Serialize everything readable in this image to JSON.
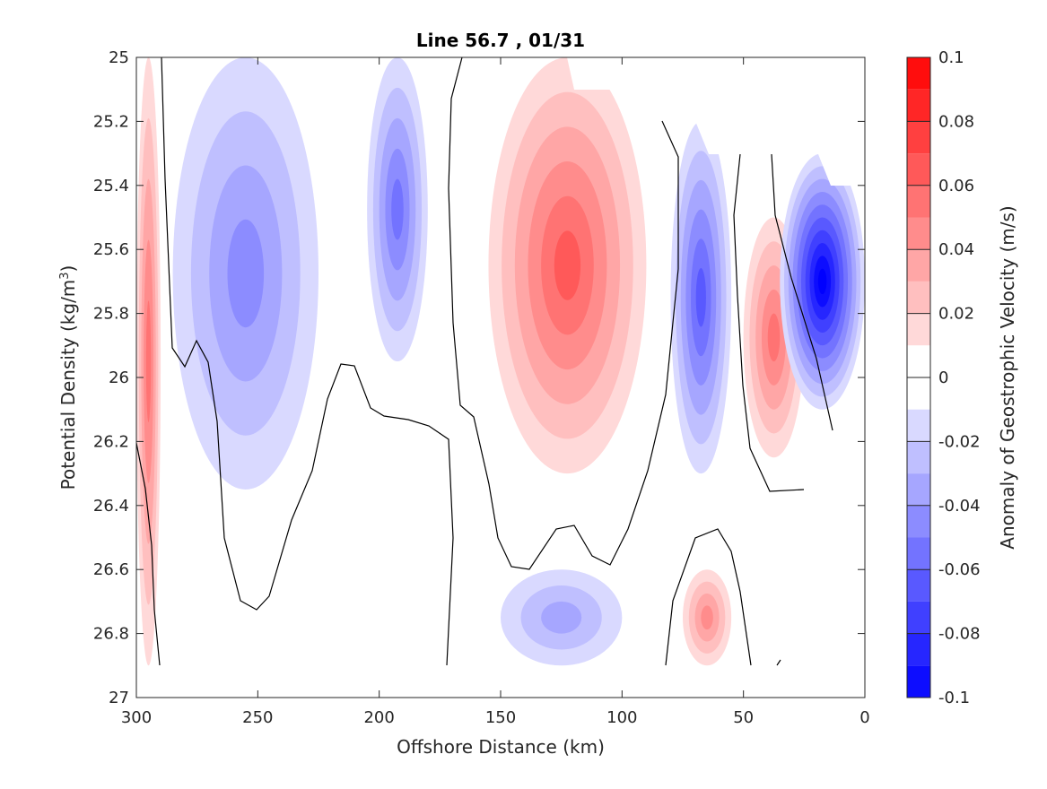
{
  "chart_data": {
    "type": "contour",
    "title": "Line 56.7 , 01/31",
    "xlabel": "Offshore Distance (km)",
    "ylabel_main": "Potential Density (kg/m",
    "ylabel_sup": "3",
    "ylabel_close": ")",
    "colorbar_label": "Anomaly of Geostrophic Velocity (m/s)",
    "x_axis": {
      "reversed": true,
      "lim": [
        0,
        300
      ],
      "ticks": [
        300,
        250,
        200,
        150,
        100,
        50,
        0
      ]
    },
    "y_axis": {
      "reversed": true,
      "lim": [
        25,
        27
      ],
      "ticks": [
        "25",
        "25.2",
        "25.4",
        "25.6",
        "25.8",
        "26",
        "26.2",
        "26.4",
        "26.6",
        "26.8",
        "27"
      ]
    },
    "colorbar": {
      "range": [
        -0.1,
        0.1
      ],
      "step": 0.01,
      "ticks": [
        "0.1",
        "0.08",
        "0.06",
        "0.04",
        "0.02",
        "0",
        "-0.02",
        "-0.04",
        "-0.06",
        "-0.08",
        "-0.1"
      ]
    },
    "colors": {
      "negative_max": "#0000ff",
      "positive_max": "#ff0000",
      "zero": "#ffffff",
      "contour_line": "#000000"
    },
    "contour_levels_drawn": [
      0
    ],
    "features": [
      {
        "name": "positive anomaly near 295 km",
        "x_range": [
          290,
          300
        ],
        "density_range": [
          25.0,
          26.9
        ],
        "peak": 0.05
      },
      {
        "name": "negative anomaly 280-230 km",
        "x_range": [
          225,
          285
        ],
        "density_range": [
          25.0,
          26.35
        ],
        "peak": -0.04
      },
      {
        "name": "negative anomaly near 190 km",
        "x_range": [
          180,
          205
        ],
        "density_range": [
          25.0,
          25.95
        ],
        "peak": -0.05
      },
      {
        "name": "positive anomaly near 120 km",
        "x_range": [
          90,
          155
        ],
        "density_range": [
          25.0,
          26.3
        ],
        "peak": 0.06
      },
      {
        "name": "negative anomaly near 65 km",
        "x_range": [
          55,
          80
        ],
        "density_range": [
          25.2,
          26.3
        ],
        "peak": -0.06
      },
      {
        "name": "positive anomaly near 40 km",
        "x_range": [
          25,
          50
        ],
        "density_range": [
          25.5,
          26.25
        ],
        "peak": 0.05
      },
      {
        "name": "negative anomaly near 5 km",
        "x_range": [
          0,
          35
        ],
        "density_range": [
          25.3,
          26.1
        ],
        "peak": -0.1
      },
      {
        "name": "negative anomaly near 120 km deep",
        "x_range": [
          100,
          150
        ],
        "density_range": [
          26.6,
          26.9
        ],
        "peak": -0.03
      },
      {
        "name": "positive anomaly near 65 km deep",
        "x_range": [
          55,
          75
        ],
        "density_range": [
          26.6,
          26.9
        ],
        "peak": 0.04
      }
    ]
  }
}
